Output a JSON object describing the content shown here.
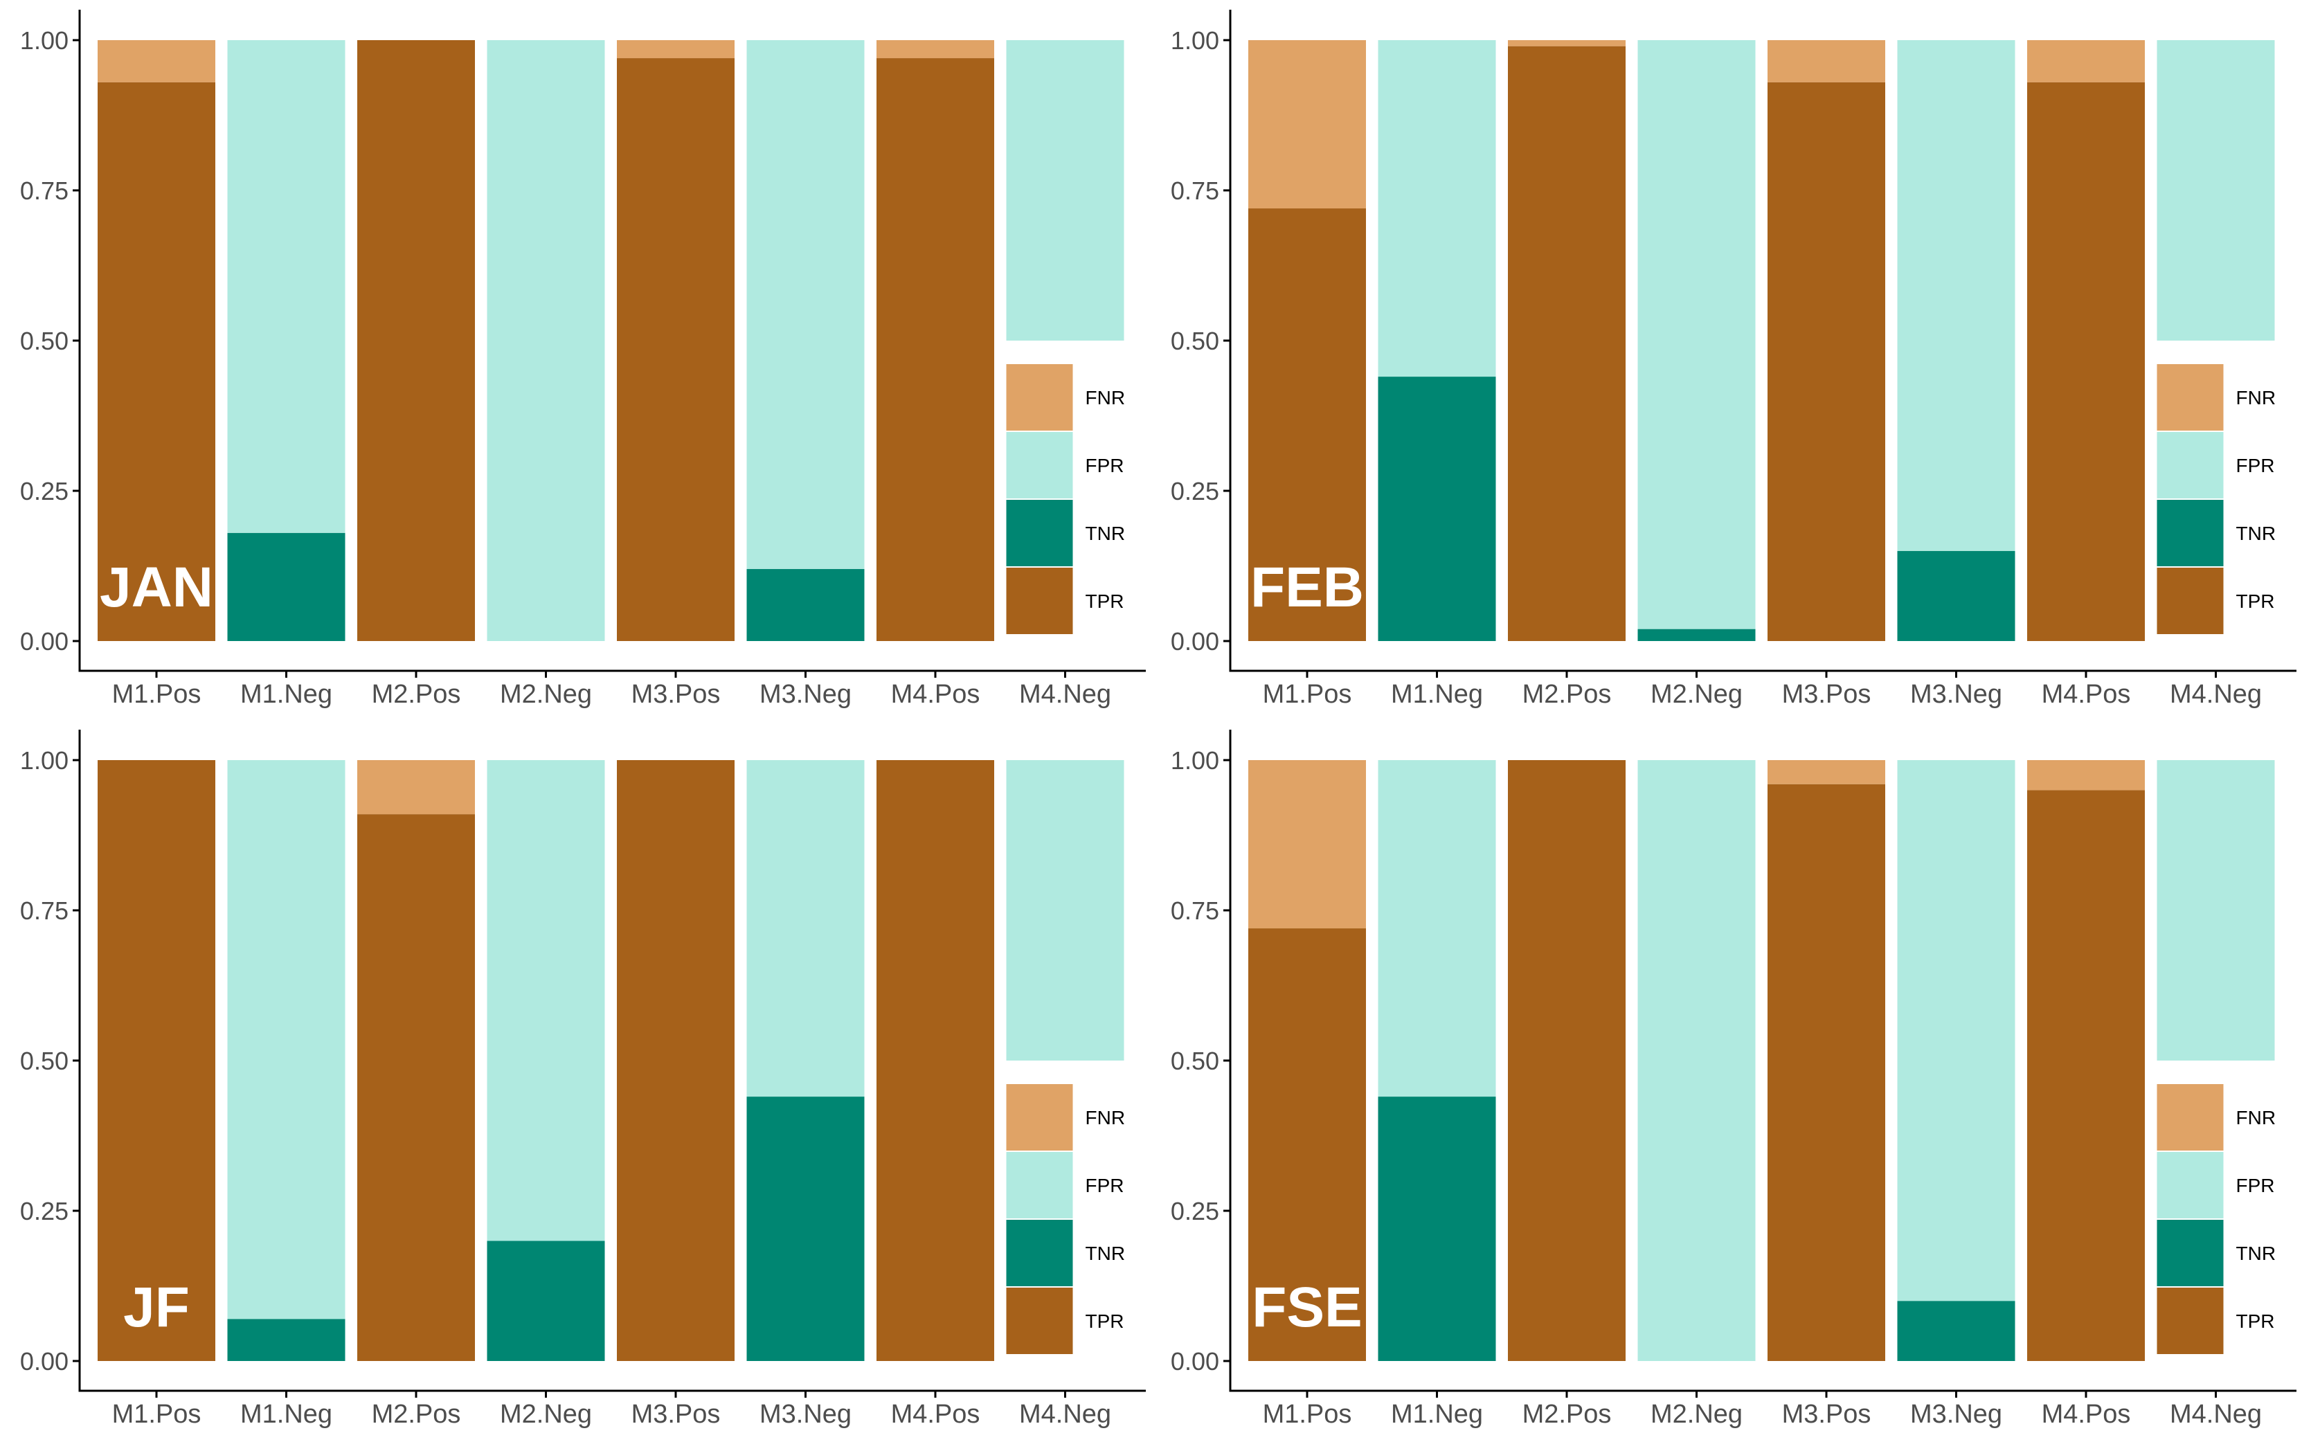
{
  "colors": {
    "FNR": "#E0A366",
    "FPR": "#B0EAE0",
    "TNR": "#008672",
    "TPR": "#A6611A",
    "axis": "#000000",
    "tick_text": "#4d4d4d",
    "panel_label": "#ffffff"
  },
  "chart_data": [
    {
      "type": "bar",
      "stacked": true,
      "panel_label": "JAN",
      "categories": [
        "M1.Pos",
        "M1.Neg",
        "M2.Pos",
        "M2.Neg",
        "M3.Pos",
        "M3.Neg",
        "M4.Pos",
        "M4.Neg"
      ],
      "ylim": [
        0,
        1
      ],
      "yticks": [
        "0.00",
        "0.25",
        "0.50",
        "0.75",
        "1.00"
      ],
      "legend": [
        "FNR",
        "FPR",
        "TNR",
        "TPR"
      ],
      "bars": [
        {
          "TPR": 0.93,
          "FNR": 0.07
        },
        {
          "TNR": 0.18,
          "FPR": 0.82
        },
        {
          "TPR": 1.0,
          "FNR": 0.0
        },
        {
          "TNR": 0.0,
          "FPR": 1.0
        },
        {
          "TPR": 0.97,
          "FNR": 0.03
        },
        {
          "TNR": 0.12,
          "FPR": 0.88
        },
        {
          "TPR": 0.97,
          "FNR": 0.03
        },
        {
          "TNR": 0.0,
          "FPR": 1.0
        }
      ]
    },
    {
      "type": "bar",
      "stacked": true,
      "panel_label": "FEB",
      "categories": [
        "M1.Pos",
        "M1.Neg",
        "M2.Pos",
        "M2.Neg",
        "M3.Pos",
        "M3.Neg",
        "M4.Pos",
        "M4.Neg"
      ],
      "ylim": [
        0,
        1
      ],
      "yticks": [
        "0.00",
        "0.25",
        "0.50",
        "0.75",
        "1.00"
      ],
      "legend": [
        "FNR",
        "FPR",
        "TNR",
        "TPR"
      ],
      "bars": [
        {
          "TPR": 0.72,
          "FNR": 0.28
        },
        {
          "TNR": 0.44,
          "FPR": 0.56
        },
        {
          "TPR": 0.99,
          "FNR": 0.01
        },
        {
          "TNR": 0.02,
          "FPR": 0.98
        },
        {
          "TPR": 0.93,
          "FNR": 0.07
        },
        {
          "TNR": 0.15,
          "FPR": 0.85
        },
        {
          "TPR": 0.93,
          "FNR": 0.07
        },
        {
          "TNR": 0.0,
          "FPR": 1.0
        }
      ]
    },
    {
      "type": "bar",
      "stacked": true,
      "panel_label": "JF",
      "categories": [
        "M1.Pos",
        "M1.Neg",
        "M2.Pos",
        "M2.Neg",
        "M3.Pos",
        "M3.Neg",
        "M4.Pos",
        "M4.Neg"
      ],
      "ylim": [
        0,
        1
      ],
      "yticks": [
        "0.00",
        "0.25",
        "0.50",
        "0.75",
        "1.00"
      ],
      "legend": [
        "FNR",
        "FPR",
        "TNR",
        "TPR"
      ],
      "bars": [
        {
          "TPR": 1.0,
          "FNR": 0.0
        },
        {
          "TNR": 0.07,
          "FPR": 0.93
        },
        {
          "TPR": 0.91,
          "FNR": 0.09
        },
        {
          "TNR": 0.2,
          "FPR": 0.8
        },
        {
          "TPR": 1.0,
          "FNR": 0.0
        },
        {
          "TNR": 0.44,
          "FPR": 0.56
        },
        {
          "TPR": 1.0,
          "FNR": 0.0
        },
        {
          "TNR": 0.0,
          "FPR": 1.0
        }
      ]
    },
    {
      "type": "bar",
      "stacked": true,
      "panel_label": "FSE",
      "categories": [
        "M1.Pos",
        "M1.Neg",
        "M2.Pos",
        "M2.Neg",
        "M3.Pos",
        "M3.Neg",
        "M4.Pos",
        "M4.Neg"
      ],
      "ylim": [
        0,
        1
      ],
      "yticks": [
        "0.00",
        "0.25",
        "0.50",
        "0.75",
        "1.00"
      ],
      "legend": [
        "FNR",
        "FPR",
        "TNR",
        "TPR"
      ],
      "bars": [
        {
          "TPR": 0.72,
          "FNR": 0.28
        },
        {
          "TNR": 0.44,
          "FPR": 0.56
        },
        {
          "TPR": 1.0,
          "FNR": 0.0
        },
        {
          "TNR": 0.0,
          "FPR": 1.0
        },
        {
          "TPR": 0.96,
          "FNR": 0.04
        },
        {
          "TNR": 0.1,
          "FPR": 0.9
        },
        {
          "TPR": 0.95,
          "FNR": 0.05
        },
        {
          "TNR": 0.0,
          "FPR": 1.0
        }
      ]
    }
  ]
}
